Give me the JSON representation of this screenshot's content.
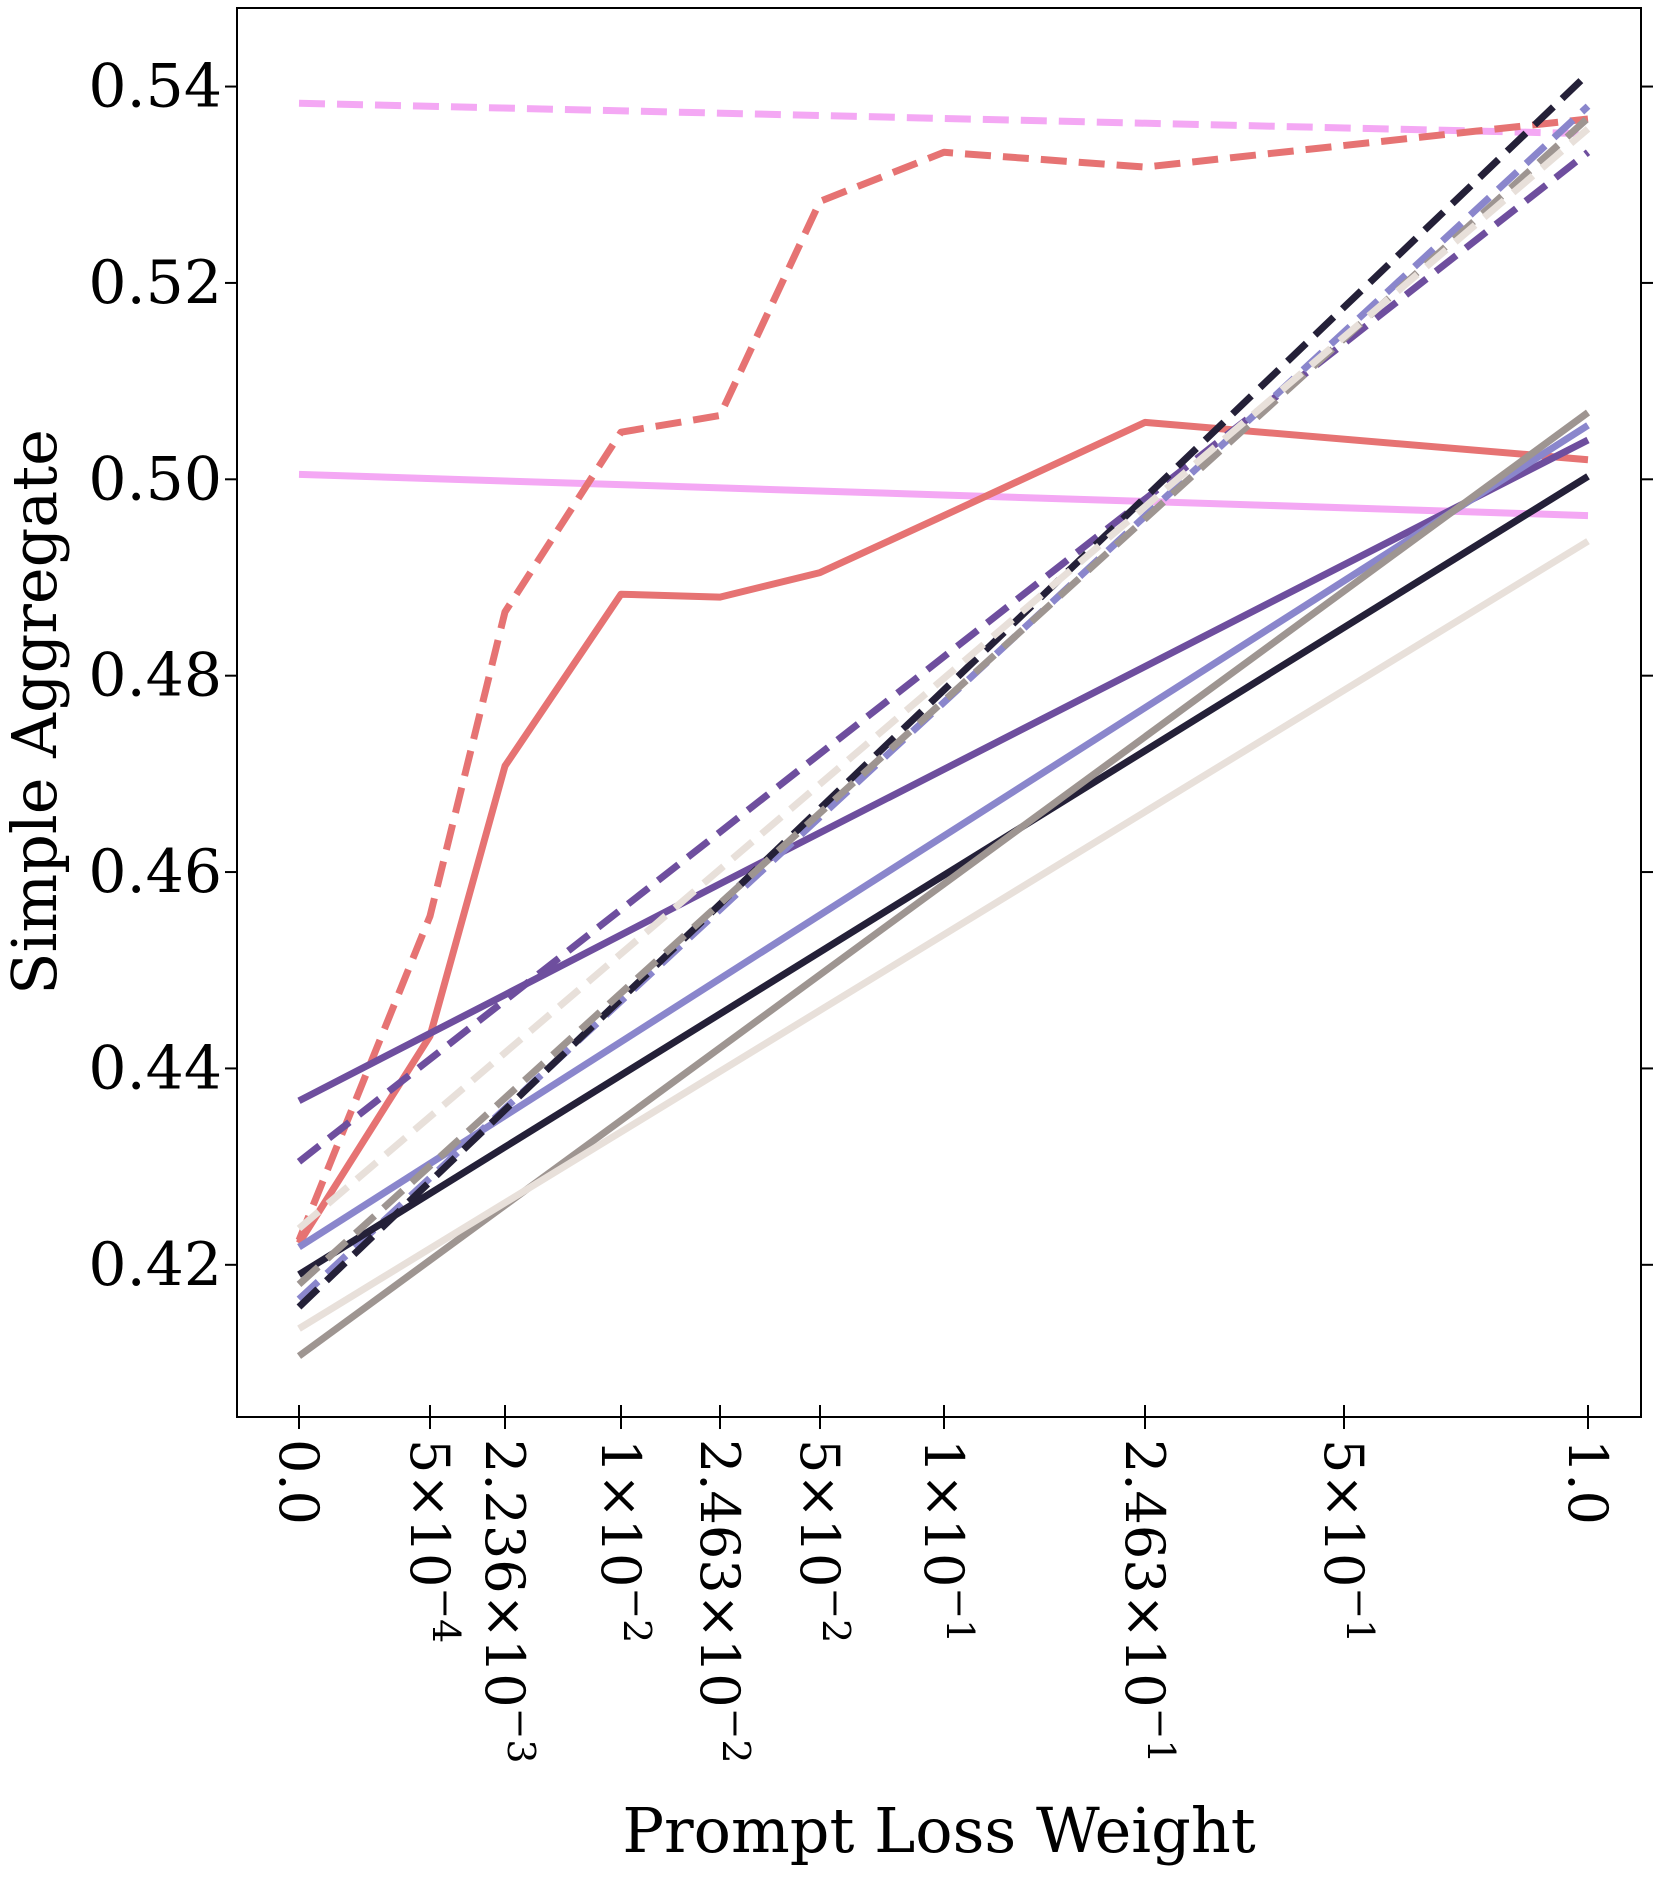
{
  "chart_data": {
    "type": "line",
    "xlabel": "Prompt Loss Weight",
    "ylabel": "Simple Aggregate",
    "x_tick_labels": [
      [
        "0.0",
        ""
      ],
      [
        "5×10",
        "−4"
      ],
      [
        "2.236×10",
        "−3"
      ],
      [
        "1×10",
        "−2"
      ],
      [
        "2.463×10",
        "−2"
      ],
      [
        "5×10",
        "−2"
      ],
      [
        "1×10",
        "−1"
      ],
      [
        "2.463×10",
        "−1"
      ],
      [
        "5×10",
        "−1"
      ],
      [
        "1.0",
        ""
      ]
    ],
    "x_values": [
      0.0,
      0.0005,
      0.002236,
      0.01,
      0.02463,
      0.05,
      0.1,
      0.2463,
      0.5,
      1.0
    ],
    "y_ticks": [
      0.42,
      0.44,
      0.46,
      0.48,
      0.5,
      0.52,
      0.54
    ],
    "y_tick_labels": [
      "0.42",
      "0.44",
      "0.46",
      "0.48",
      "0.50",
      "0.52",
      "0.54"
    ],
    "ylim": [
      0.4045,
      0.548
    ],
    "grid": false,
    "series": [
      {
        "color": "#f4a8f4",
        "dashed": false,
        "x": [
          0.0,
          1.0
        ],
        "values": [
          0.5005,
          0.4963
        ]
      },
      {
        "color": "#f4a8f4",
        "dashed": true,
        "x": [
          0.0,
          1.0
        ],
        "values": [
          0.5383,
          0.5352
        ]
      },
      {
        "color": "#e67373",
        "dashed": false,
        "x": [
          0.0,
          0.0005,
          0.002236,
          0.01,
          0.02463,
          0.05,
          0.1,
          0.2463,
          1.0
        ],
        "values": [
          0.4222,
          0.4433,
          0.4708,
          0.4883,
          0.488,
          0.4905,
          0.4963,
          0.5058,
          0.502
        ]
      },
      {
        "color": "#e67373",
        "dashed": true,
        "x": [
          0.0,
          0.0005,
          0.002236,
          0.01,
          0.02463,
          0.05,
          0.1,
          0.2463,
          1.0
        ],
        "values": [
          0.4225,
          0.4555,
          0.4865,
          0.5048,
          0.5065,
          0.5283,
          0.5333,
          0.5318,
          0.5367
        ]
      },
      {
        "color": "#6e4e9e",
        "dashed": false,
        "x": [
          0.0,
          0.002236,
          0.02463,
          1.0
        ],
        "values": [
          0.4367,
          0.4475,
          0.4588,
          0.504
        ]
      },
      {
        "color": "#6e4e9e",
        "dashed": true,
        "x": [
          0.0,
          1.0
        ],
        "values": [
          0.4305,
          0.5333
        ]
      },
      {
        "color": "#8a86cc",
        "dashed": false,
        "x": [
          0.0,
          1.0
        ],
        "values": [
          0.4218,
          0.5055
        ]
      },
      {
        "color": "#8a86cc",
        "dashed": true,
        "x": [
          0.0,
          1.0
        ],
        "values": [
          0.4165,
          0.538
        ]
      },
      {
        "color": "#242038",
        "dashed": false,
        "x": [
          0.0,
          1.0
        ],
        "values": [
          0.419,
          0.5003
        ]
      },
      {
        "color": "#242038",
        "dashed": true,
        "x": [
          0.0,
          1.0
        ],
        "values": [
          0.4157,
          0.5413
        ]
      },
      {
        "color": "#9e9591",
        "dashed": false,
        "x": [
          0.0,
          1.0
        ],
        "values": [
          0.4107,
          0.5068
        ]
      },
      {
        "color": "#9e9591",
        "dashed": true,
        "x": [
          0.0,
          1.0
        ],
        "values": [
          0.418,
          0.5368
        ]
      },
      {
        "color": "#e8e0da",
        "dashed": false,
        "x": [
          0.0,
          1.0
        ],
        "values": [
          0.4135,
          0.4937
        ]
      },
      {
        "color": "#e8e0da",
        "dashed": true,
        "x": [
          0.0,
          1.0
        ],
        "values": [
          0.4237,
          0.5357
        ]
      }
    ]
  }
}
